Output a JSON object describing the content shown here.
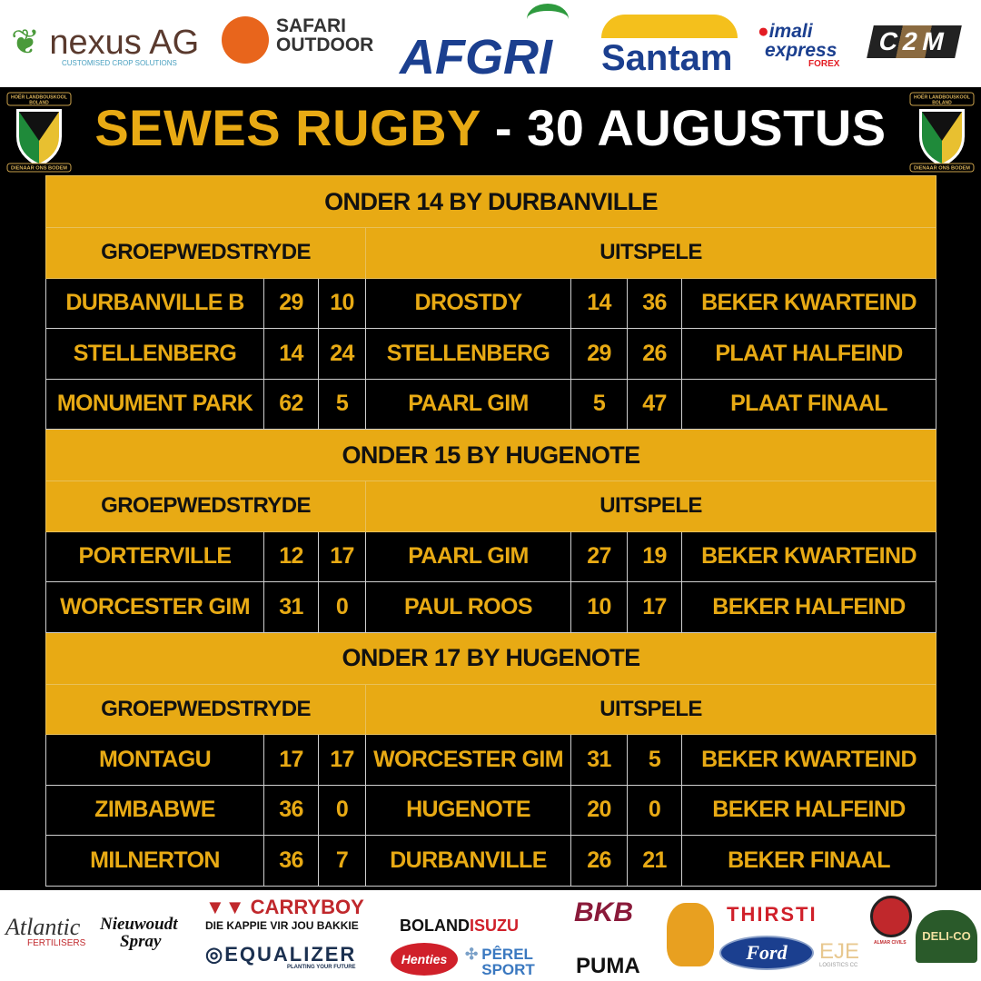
{
  "sponsors_top": [
    "nexus AG",
    "CUSTOMISED CROP SOLUTIONS",
    "SAFARI",
    "OUTDOOR",
    "AFGRI",
    "Santam",
    "imali",
    "express",
    "FOREX",
    "C2M"
  ],
  "sponsors_bottom": [
    "Atlantic",
    "FERTILISERS",
    "Nieuwoudt",
    "Spray",
    "CARRYBOY",
    "DIE KAPPIE VIR JOU BAKKIE",
    "EQUALIZER",
    "PLANTING YOUR FUTURE",
    "BOLAND",
    "ISUZU",
    "Henties",
    "PÊREL",
    "SPORT",
    "BKB",
    "PUMA",
    "THIRSTI",
    "Ford",
    "EJE",
    "LOGISTICS CC",
    "ALMAR CIVILS",
    "DELI-CO"
  ],
  "crest_text": [
    "HOËR LANDBOUSKOOL",
    "BOLAND",
    "DIENAAR ONS BODEM"
  ],
  "title": {
    "highlight": "SEWES RUGBY",
    "rest": " - 30 AUGUSTUS"
  },
  "colors": {
    "gold": "#e8aa14",
    "background": "#000000"
  },
  "sections": [
    {
      "heading": "ONDER 14 BY DURBANVILLE",
      "group_label": "GROEPWEDSTRYDE",
      "knockout_label": "UITSPELE",
      "rows": [
        {
          "team": "DURBANVILLE B",
          "s1": "29",
          "s2": "10",
          "opp": "DROSTDY",
          "s3": "14",
          "s4": "36",
          "stage": "BEKER KWARTEIND"
        },
        {
          "team": "STELLENBERG",
          "s1": "14",
          "s2": "24",
          "opp": "STELLENBERG",
          "s3": "29",
          "s4": "26",
          "stage": "PLAAT HALFEIND"
        },
        {
          "team": "MONUMENT PARK",
          "s1": "62",
          "s2": "5",
          "opp": "PAARL GIM",
          "s3": "5",
          "s4": "47",
          "stage": "PLAAT FINAAL"
        }
      ]
    },
    {
      "heading": "ONDER 15 BY HUGENOTE",
      "group_label": "GROEPWEDSTRYDE",
      "knockout_label": "UITSPELE",
      "rows": [
        {
          "team": "PORTERVILLE",
          "s1": "12",
          "s2": "17",
          "opp": "PAARL GIM",
          "s3": "27",
          "s4": "19",
          "stage": "BEKER KWARTEIND"
        },
        {
          "team": "WORCESTER GIM",
          "s1": "31",
          "s2": "0",
          "opp": "PAUL ROOS",
          "s3": "10",
          "s4": "17",
          "stage": "BEKER HALFEIND"
        }
      ]
    },
    {
      "heading": "ONDER 17 BY HUGENOTE",
      "group_label": "GROEPWEDSTRYDE",
      "knockout_label": "UITSPELE",
      "rows": [
        {
          "team": "MONTAGU",
          "s1": "17",
          "s2": "17",
          "opp": "WORCESTER GIM",
          "s3": "31",
          "s4": "5",
          "stage": "BEKER KWARTEIND"
        },
        {
          "team": "ZIMBABWE",
          "s1": "36",
          "s2": "0",
          "opp": "HUGENOTE",
          "s3": "20",
          "s4": "0",
          "stage": "BEKER HALFEIND"
        },
        {
          "team": "MILNERTON",
          "s1": "36",
          "s2": "7",
          "opp": "DURBANVILLE",
          "s3": "26",
          "s4": "21",
          "stage": "BEKER FINAAL"
        }
      ]
    }
  ]
}
